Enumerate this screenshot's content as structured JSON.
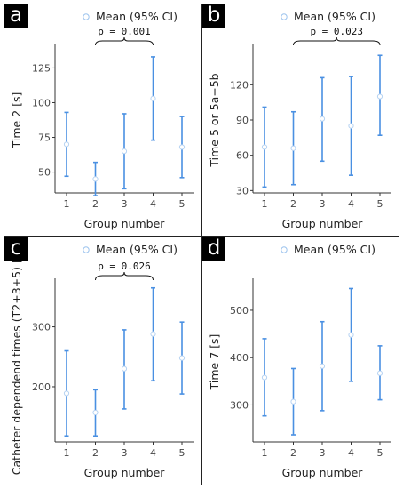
{
  "figure": {
    "panels": [
      {
        "label": "a",
        "legend": "Mean (95% CI)"
      },
      {
        "label": "b",
        "legend": "Mean (95% CI)"
      },
      {
        "label": "c",
        "legend": "Mean (95% CI)"
      },
      {
        "label": "d",
        "legend": "Mean (95% CI)"
      }
    ]
  },
  "colors": {
    "series": "#4a90e2",
    "marker_fill": "#ffffff",
    "axis": "#333333"
  },
  "chart_data": [
    {
      "type": "scatter",
      "xlabel": "Group number",
      "ylabel": "Time 2 [s]",
      "x": [
        1,
        2,
        3,
        4,
        5
      ],
      "series": [
        {
          "name": "Mean (95% CI)",
          "mean": [
            70,
            45,
            65,
            103,
            68
          ],
          "lower": [
            47,
            33,
            38,
            73,
            46
          ],
          "upper": [
            93,
            57,
            92,
            133,
            90
          ]
        }
      ],
      "xlim": [
        0.6,
        5.4
      ],
      "ylim": [
        35,
        140
      ],
      "yticks": [
        50,
        75,
        100,
        125
      ],
      "annotation": {
        "text": "p = 0.001",
        "from": 2,
        "to": 4
      },
      "grid": false,
      "legend": "top"
    },
    {
      "type": "scatter",
      "xlabel": "Group number",
      "ylabel": "Time 5 or 5a+5b",
      "x": [
        1,
        2,
        3,
        4,
        5
      ],
      "series": [
        {
          "name": "Mean (95% CI)",
          "mean": [
            67,
            66,
            91,
            85,
            110
          ],
          "lower": [
            33,
            35,
            55,
            43,
            77
          ],
          "upper": [
            101,
            97,
            126,
            127,
            145
          ]
        }
      ],
      "xlim": [
        0.6,
        5.4
      ],
      "ylim": [
        28,
        152
      ],
      "yticks": [
        30,
        60,
        90,
        120
      ],
      "annotation": {
        "text": "p = 0.023",
        "from": 2,
        "to": 5
      },
      "grid": false,
      "legend": "top"
    },
    {
      "type": "scatter",
      "xlabel": "Group number",
      "ylabel": "Catheter dependend times (T2+3+5) [s]",
      "x": [
        1,
        2,
        3,
        4,
        5
      ],
      "series": [
        {
          "name": "Mean (95% CI)",
          "mean": [
            189,
            157,
            230,
            288,
            248
          ],
          "lower": [
            118,
            118,
            163,
            210,
            188
          ],
          "upper": [
            260,
            195,
            295,
            365,
            308
          ]
        }
      ],
      "xlim": [
        0.6,
        5.4
      ],
      "ylim": [
        108,
        375
      ],
      "yticks": [
        200,
        300
      ],
      "annotation": {
        "text": "p = 0.026",
        "from": 2,
        "to": 4
      },
      "grid": false,
      "legend": "top"
    },
    {
      "type": "scatter",
      "xlabel": "Group number",
      "ylabel": "Time 7 [s]",
      "x": [
        1,
        2,
        3,
        4,
        5
      ],
      "series": [
        {
          "name": "Mean (95% CI)",
          "mean": [
            358,
            307,
            382,
            448,
            367
          ],
          "lower": [
            277,
            237,
            288,
            350,
            311
          ],
          "upper": [
            440,
            377,
            476,
            546,
            425
          ]
        }
      ],
      "xlim": [
        0.6,
        5.4
      ],
      "ylim": [
        222,
        560
      ],
      "yticks": [
        300,
        400,
        500
      ],
      "grid": false,
      "legend": "top"
    }
  ]
}
